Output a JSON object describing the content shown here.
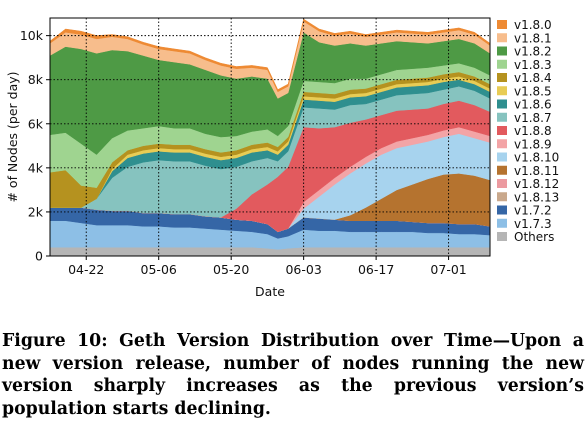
{
  "chart_data": {
    "type": "area",
    "stacked": true,
    "xlabel": "Date",
    "ylabel": "# of Nodes (per day)",
    "ylim": [
      0,
      10800
    ],
    "yticks": [
      0,
      2000,
      4000,
      6000,
      8000,
      10000
    ],
    "ytick_labels": [
      "0",
      "2k",
      "4k",
      "6k",
      "8k",
      "10k"
    ],
    "xticks": [
      "04-22",
      "05-06",
      "05-20",
      "06-03",
      "06-17",
      "07-01"
    ],
    "xlim": [
      "04-15",
      "07-09"
    ],
    "grid": true,
    "legend_position": "right",
    "x": [
      "04-15",
      "04-18",
      "04-21",
      "04-24",
      "04-27",
      "04-30",
      "05-03",
      "05-06",
      "05-09",
      "05-12",
      "05-15",
      "05-18",
      "05-21",
      "05-24",
      "05-27",
      "05-29",
      "05-31",
      "06-03",
      "06-06",
      "06-09",
      "06-12",
      "06-15",
      "06-18",
      "06-21",
      "06-24",
      "06-27",
      "06-30",
      "07-03",
      "07-06",
      "07-09"
    ],
    "series": [
      {
        "name": "Others",
        "color": "#b5b5b5",
        "values": [
          400,
          400,
          400,
          400,
          400,
          400,
          400,
          400,
          400,
          400,
          400,
          400,
          400,
          400,
          350,
          300,
          350,
          400,
          400,
          400,
          400,
          400,
          400,
          400,
          400,
          400,
          400,
          400,
          400,
          400
        ]
      },
      {
        "name": "v1.7.3",
        "color": "#8dbfe6",
        "values": [
          1200,
          1200,
          1100,
          1000,
          1000,
          1000,
          950,
          950,
          900,
          900,
          850,
          800,
          750,
          700,
          650,
          500,
          550,
          800,
          750,
          750,
          700,
          700,
          700,
          700,
          700,
          650,
          650,
          600,
          600,
          550
        ]
      },
      {
        "name": "v1.7.2",
        "color": "#3566a6",
        "values": [
          600,
          600,
          700,
          700,
          650,
          650,
          600,
          600,
          600,
          600,
          550,
          550,
          500,
          500,
          450,
          300,
          350,
          550,
          550,
          500,
          500,
          500,
          500,
          500,
          450,
          450,
          450,
          450,
          450,
          400
        ]
      },
      {
        "name": "v1.8.13",
        "color": "#c9a88c",
        "values": [
          0,
          0,
          0,
          0,
          0,
          0,
          0,
          0,
          0,
          0,
          0,
          0,
          0,
          0,
          0,
          0,
          0,
          0,
          0,
          0,
          0,
          0,
          0,
          0,
          0,
          0,
          0,
          0,
          0,
          0
        ]
      },
      {
        "name": "v1.8.12",
        "color": "#ec9aa0",
        "values": [
          0,
          0,
          0,
          0,
          0,
          0,
          0,
          0,
          0,
          0,
          0,
          0,
          0,
          0,
          0,
          0,
          0,
          0,
          0,
          0,
          0,
          0,
          0,
          0,
          0,
          0,
          0,
          0,
          0,
          0
        ]
      },
      {
        "name": "v1.8.11",
        "color": "#b5732f",
        "values": [
          0,
          0,
          0,
          0,
          0,
          0,
          0,
          0,
          0,
          0,
          0,
          0,
          0,
          0,
          0,
          0,
          0,
          0,
          0,
          0,
          250,
          600,
          1000,
          1400,
          1700,
          2000,
          2200,
          2300,
          2200,
          2100
        ]
      },
      {
        "name": "v1.8.10",
        "color": "#a7d3ee",
        "values": [
          0,
          0,
          0,
          0,
          0,
          0,
          0,
          0,
          0,
          0,
          0,
          0,
          0,
          0,
          0,
          0,
          0,
          400,
          1000,
          1600,
          1900,
          2000,
          2000,
          1900,
          1800,
          1700,
          1700,
          1800,
          1700,
          1700
        ]
      },
      {
        "name": "v1.8.9",
        "color": "#f3a4a6",
        "values": [
          0,
          0,
          0,
          0,
          0,
          0,
          0,
          0,
          0,
          0,
          0,
          0,
          0,
          0,
          0,
          0,
          0,
          300,
          300,
          300,
          300,
          300,
          300,
          300,
          300,
          300,
          300,
          300,
          300,
          300
        ]
      },
      {
        "name": "v1.8.8",
        "color": "#e25a5e",
        "values": [
          0,
          0,
          0,
          0,
          0,
          0,
          0,
          0,
          0,
          0,
          0,
          0,
          500,
          1200,
          1800,
          2500,
          2800,
          3400,
          2800,
          2300,
          2000,
          1700,
          1500,
          1400,
          1300,
          1200,
          1200,
          1200,
          1200,
          1100
        ]
      },
      {
        "name": "v1.8.7",
        "color": "#86c3bf",
        "values": [
          0,
          0,
          0,
          500,
          1500,
          2000,
          2300,
          2400,
          2400,
          2400,
          2300,
          2200,
          1900,
          1500,
          1200,
          700,
          700,
          900,
          900,
          800,
          800,
          700,
          700,
          700,
          700,
          700,
          650,
          650,
          650,
          600
        ]
      },
      {
        "name": "v1.8.6",
        "color": "#2f8f8f",
        "values": [
          0,
          0,
          0,
          0,
          300,
          400,
          400,
          400,
          400,
          400,
          400,
          400,
          400,
          400,
          350,
          300,
          300,
          350,
          350,
          350,
          350,
          350,
          350,
          350,
          350,
          350,
          350,
          300,
          300,
          300
        ]
      },
      {
        "name": "v1.8.5",
        "color": "#e8cc55",
        "values": [
          0,
          0,
          0,
          0,
          100,
          150,
          150,
          150,
          150,
          150,
          150,
          150,
          150,
          150,
          150,
          150,
          150,
          150,
          150,
          150,
          150,
          150,
          150,
          150,
          150,
          150,
          150,
          150,
          150,
          150
        ]
      },
      {
        "name": "v1.8.4",
        "color": "#b5921f",
        "values": [
          1600,
          1700,
          1000,
          500,
          300,
          200,
          200,
          200,
          200,
          200,
          200,
          200,
          200,
          200,
          200,
          200,
          200,
          200,
          200,
          200,
          200,
          200,
          200,
          200,
          200,
          200,
          200,
          200,
          200,
          200
        ]
      },
      {
        "name": "v1.8.3",
        "color": "#9fd490",
        "values": [
          1700,
          1700,
          1900,
          1500,
          1100,
          900,
          800,
          800,
          750,
          750,
          700,
          700,
          650,
          600,
          600,
          500,
          500,
          500,
          500,
          500,
          500,
          450,
          450,
          450,
          450,
          450,
          400,
          400,
          400,
          400
        ]
      },
      {
        "name": "v1.8.2",
        "color": "#4e9a45",
        "values": [
          3600,
          3900,
          4300,
          4600,
          4000,
          3600,
          3300,
          3000,
          3000,
          2900,
          2900,
          2800,
          2600,
          2500,
          2300,
          1700,
          1500,
          2200,
          1800,
          1700,
          1600,
          1500,
          1400,
          1300,
          1200,
          1100,
          1100,
          1100,
          1100,
          1000
        ]
      },
      {
        "name": "v1.8.1",
        "color": "#f7bd8c",
        "values": [
          550,
          650,
          650,
          650,
          600,
          550,
          500,
          500,
          500,
          500,
          450,
          450,
          450,
          400,
          400,
          300,
          300,
          500,
          500,
          450,
          450,
          400,
          400,
          400,
          400,
          400,
          400,
          400,
          400,
          350
        ]
      },
      {
        "name": "v1.8.0",
        "color": "#ee8a33",
        "values": [
          100,
          150,
          150,
          150,
          100,
          100,
          100,
          100,
          100,
          100,
          100,
          100,
          100,
          100,
          100,
          100,
          100,
          100,
          100,
          100,
          100,
          100,
          100,
          100,
          100,
          100,
          100,
          100,
          100,
          100
        ]
      }
    ],
    "legend_order": [
      "v1.8.0",
      "v1.8.1",
      "v1.8.2",
      "v1.8.3",
      "v1.8.4",
      "v1.8.5",
      "v1.8.6",
      "v1.8.7",
      "v1.8.8",
      "v1.8.9",
      "v1.8.10",
      "v1.8.11",
      "v1.8.12",
      "v1.8.13",
      "v1.7.2",
      "v1.7.3",
      "Others"
    ]
  },
  "caption": "Figure 10: Geth Version Distribution over Time—Upon a new version release, number of nodes running the new version sharply increases as the previous version’s population starts declining."
}
